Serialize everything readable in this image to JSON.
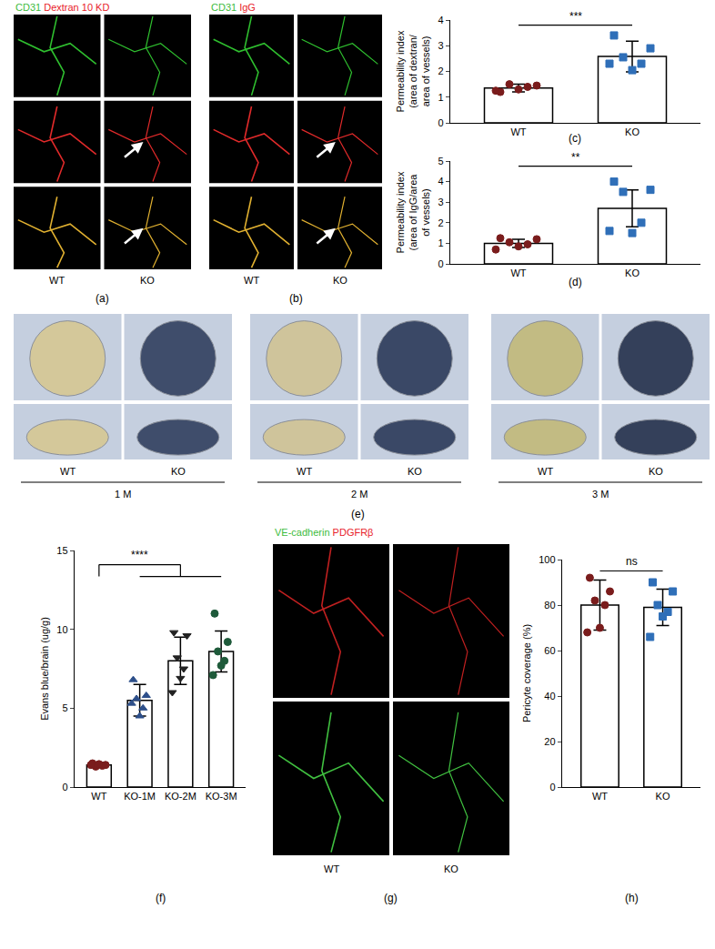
{
  "chart_data": [
    {
      "type": "bar",
      "panel": "(c)",
      "categories": [
        "WT",
        "KO"
      ],
      "values": [
        1.35,
        2.58
      ],
      "errors": [
        0.15,
        0.6
      ],
      "points": [
        [
          1.2,
          1.45,
          1.5,
          1.4,
          1.3,
          1.25
        ],
        [
          3.4,
          2.9,
          2.55,
          2.3,
          2.05,
          2.3
        ]
      ],
      "colors": [
        "#7a1c1c",
        "#2f6fb8"
      ],
      "markers": [
        "circle",
        "square"
      ],
      "ylabel": [
        "Permeability index",
        "(area of dextran/",
        "area of vessels)"
      ],
      "ylim": [
        0,
        4
      ],
      "yticks": [
        0,
        1,
        2,
        3,
        4
      ],
      "significance": {
        "label": "***",
        "from": "WT",
        "to": [
          "KO"
        ]
      }
    },
    {
      "type": "bar",
      "panel": "(d)",
      "categories": [
        "WT",
        "KO"
      ],
      "values": [
        1.0,
        2.7
      ],
      "errors": [
        0.2,
        0.9
      ],
      "points": [
        [
          1.25,
          1.2,
          1.05,
          0.95,
          0.85,
          0.7
        ],
        [
          4.0,
          3.6,
          3.5,
          2.0,
          1.5,
          1.6
        ]
      ],
      "colors": [
        "#7a1c1c",
        "#2f6fb8"
      ],
      "markers": [
        "circle",
        "square"
      ],
      "ylabel": [
        "Permeability index",
        "(area of IgG/area",
        "of vessels)"
      ],
      "ylim": [
        0,
        5
      ],
      "yticks": [
        0,
        1,
        2,
        3,
        4,
        5
      ],
      "significance": {
        "label": "**",
        "from": "WT",
        "to": [
          "KO"
        ]
      }
    },
    {
      "type": "bar",
      "panel": "(f)",
      "categories": [
        "WT",
        "KO-1M",
        "KO-2M",
        "KO-3M"
      ],
      "values": [
        1.4,
        5.5,
        8.0,
        8.6
      ],
      "errors": [
        0.15,
        1.0,
        1.5,
        1.3
      ],
      "points": [
        [
          1.5,
          1.4,
          1.3,
          1.35,
          1.45,
          1.4
        ],
        [
          6.8,
          5.8,
          5.6,
          5.0,
          4.5,
          5.3
        ],
        [
          9.8,
          9.6,
          8.2,
          7.5,
          6.9,
          6.0
        ],
        [
          11.0,
          9.2,
          8.6,
          8.0,
          7.7,
          7.1
        ]
      ],
      "colors": [
        "#7a1c1c",
        "#2d4f8a",
        "#222222",
        "#1e5a3a"
      ],
      "markers": [
        "circle",
        "triangle-up",
        "triangle-down",
        "circle"
      ],
      "ylabel": [
        "Evans blue/brain (ug/g)"
      ],
      "ylim": [
        0,
        15
      ],
      "yticks": [
        0,
        5,
        10,
        15
      ],
      "significance": {
        "label": "****",
        "from": "WT",
        "to": [
          "KO-1M",
          "KO-2M",
          "KO-3M"
        ]
      }
    },
    {
      "type": "bar",
      "panel": "(h)",
      "categories": [
        "WT",
        "KO"
      ],
      "values": [
        80,
        79
      ],
      "errors": [
        11,
        8
      ],
      "points": [
        [
          92,
          86,
          82,
          80,
          70,
          68
        ],
        [
          90,
          86,
          80,
          77,
          75,
          66
        ]
      ],
      "colors": [
        "#7a1c1c",
        "#2f6fb8"
      ],
      "markers": [
        "circle",
        "square"
      ],
      "ylabel": [
        "Pericyte coverage (%)"
      ],
      "ylim": [
        0,
        100
      ],
      "yticks": [
        0,
        20,
        40,
        60,
        80,
        100
      ],
      "significance": {
        "label": "ns",
        "from": "WT",
        "to": [
          "KO"
        ]
      }
    }
  ],
  "micrographs": [
    {
      "panel": "(a)",
      "header": [
        {
          "text": "CD31",
          "color": "#3dbb3d"
        },
        {
          "text": "Dextran 10 KD",
          "color": "#e8222a"
        }
      ],
      "columns": [
        "WT",
        "KO"
      ]
    },
    {
      "panel": "(b)",
      "header": [
        {
          "text": "CD31",
          "color": "#3dbb3d"
        },
        {
          "text": "IgG",
          "color": "#e8222a"
        }
      ],
      "columns": [
        "WT",
        "KO"
      ]
    },
    {
      "panel": "(g)",
      "header": [
        {
          "text": "VE-cadherin",
          "color": "#3dbb3d"
        },
        {
          "text": "PDGFRβ",
          "color": "#e8222a"
        }
      ],
      "columns": [
        "WT",
        "KO"
      ]
    }
  ],
  "photos": {
    "panel": "(e)",
    "groups": [
      {
        "columns": [
          "WT",
          "KO"
        ],
        "label": "1 M"
      },
      {
        "columns": [
          "WT",
          "KO"
        ],
        "label": "2 M"
      },
      {
        "columns": [
          "WT",
          "KO"
        ],
        "label": "3 M"
      }
    ]
  }
}
